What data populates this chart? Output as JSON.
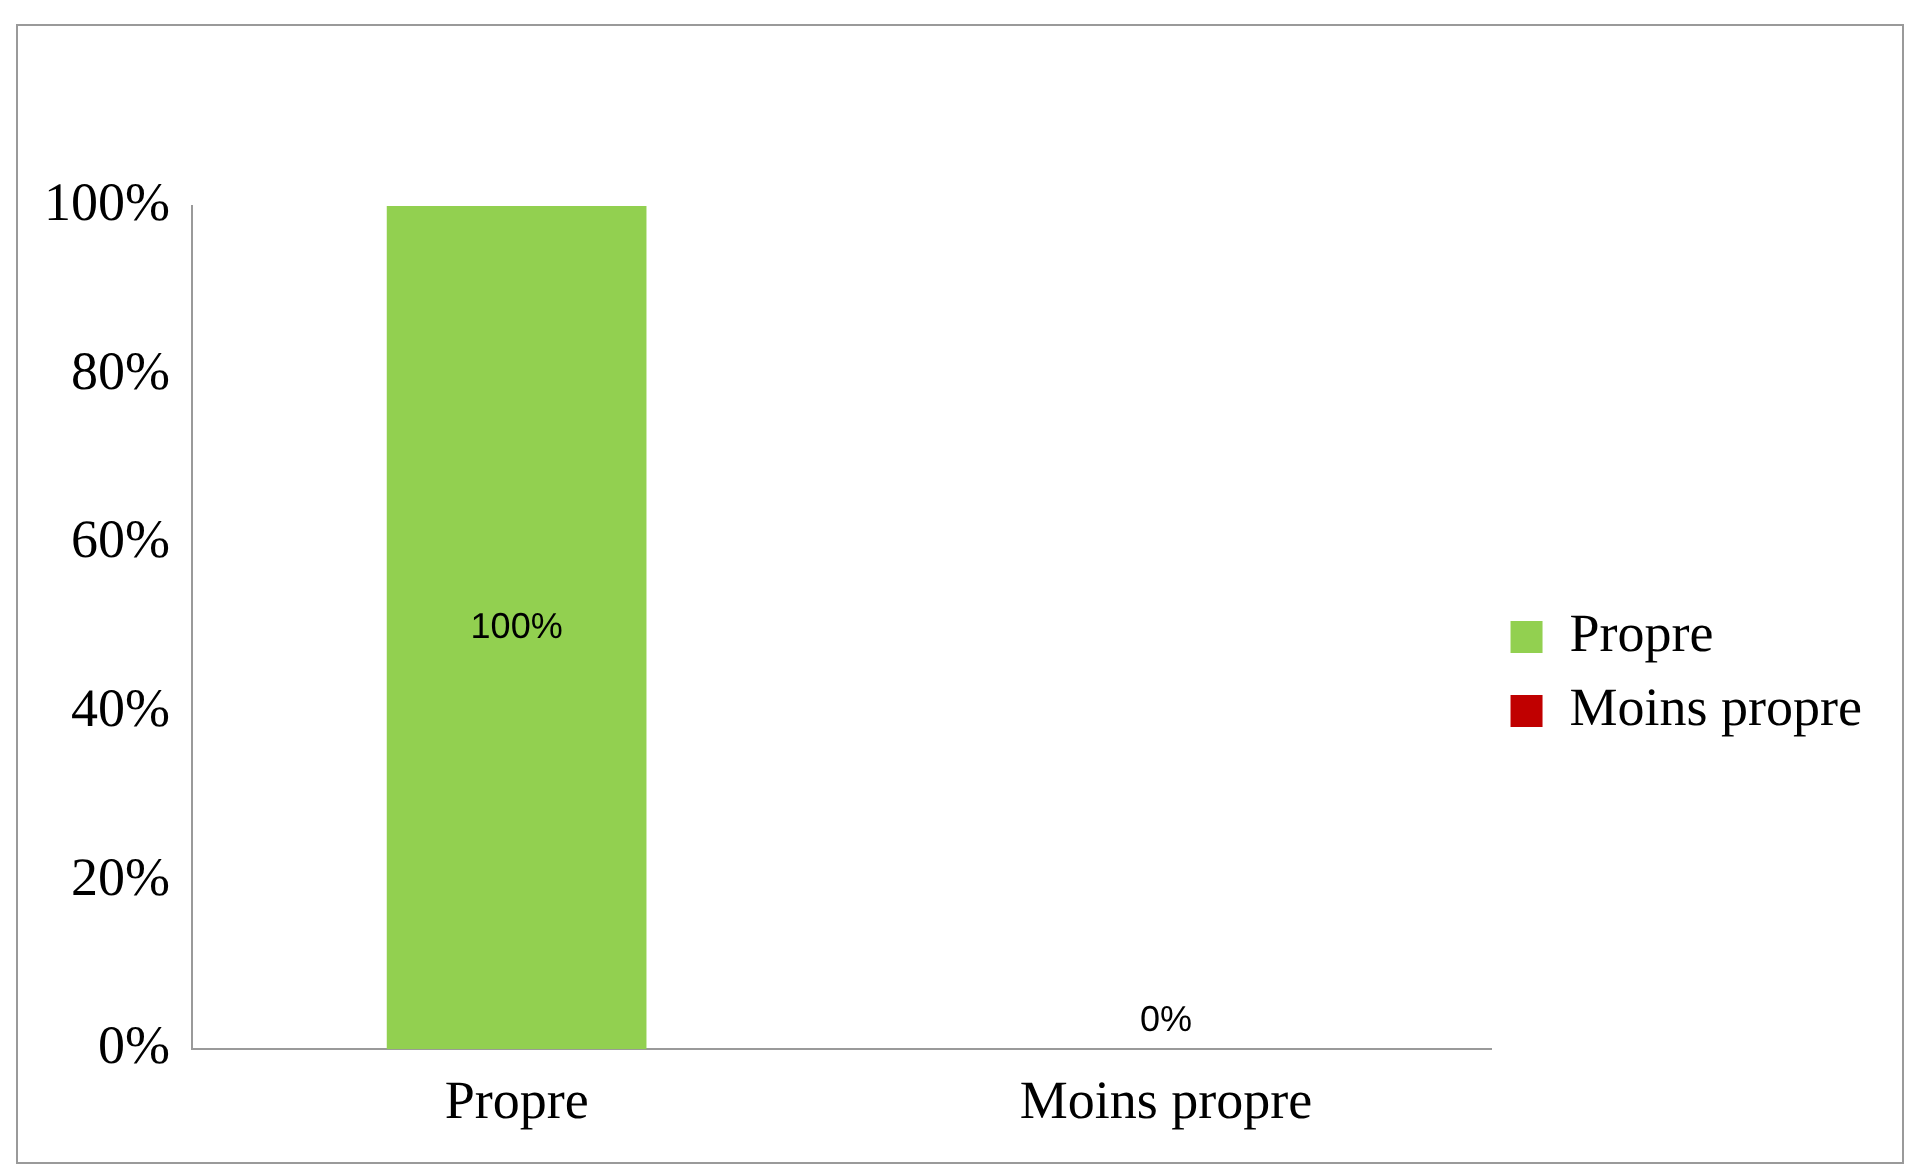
{
  "chart_data": {
    "type": "bar",
    "categories": [
      "Propre",
      "Moins propre"
    ],
    "series": [
      {
        "name": "Propre",
        "color": "#92d050",
        "values": [
          100,
          null
        ],
        "value_labels": [
          "100%",
          null
        ]
      },
      {
        "name": "Moins propre",
        "color": "#c00000",
        "values": [
          null,
          0
        ],
        "value_labels": [
          null,
          "0%"
        ]
      }
    ],
    "ylim": [
      0,
      100
    ],
    "yticks": [
      {
        "value": 0,
        "label": "0%"
      },
      {
        "value": 20,
        "label": "20%"
      },
      {
        "value": 40,
        "label": "40%"
      },
      {
        "value": 60,
        "label": "60%"
      },
      {
        "value": 80,
        "label": "80%"
      },
      {
        "value": 100,
        "label": "100%"
      }
    ],
    "grid": false,
    "legend": "right"
  }
}
